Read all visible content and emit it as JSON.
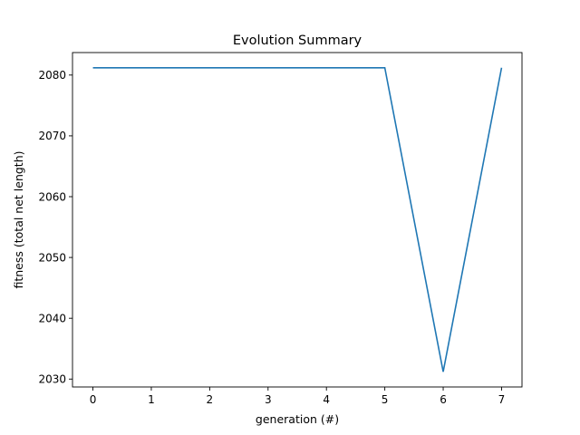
{
  "chart_data": {
    "type": "line",
    "title": "Evolution Summary",
    "xlabel": "generation (#)",
    "ylabel": "fitness (total net length)",
    "x": [
      0,
      1,
      2,
      3,
      4,
      5,
      6,
      7
    ],
    "series": [
      {
        "values": [
          2081.2,
          2081.2,
          2081.2,
          2081.2,
          2081.2,
          2081.2,
          2031.2,
          2081.2
        ]
      }
    ],
    "xlim": [
      -0.35,
      7.35
    ],
    "ylim": [
      2028.7,
      2083.7
    ],
    "xticks": [
      0,
      1,
      2,
      3,
      4,
      5,
      6,
      7
    ],
    "yticks": [
      2030,
      2040,
      2050,
      2060,
      2070,
      2080
    ],
    "grid": false,
    "colors": {
      "series": "#1f77b4"
    }
  }
}
